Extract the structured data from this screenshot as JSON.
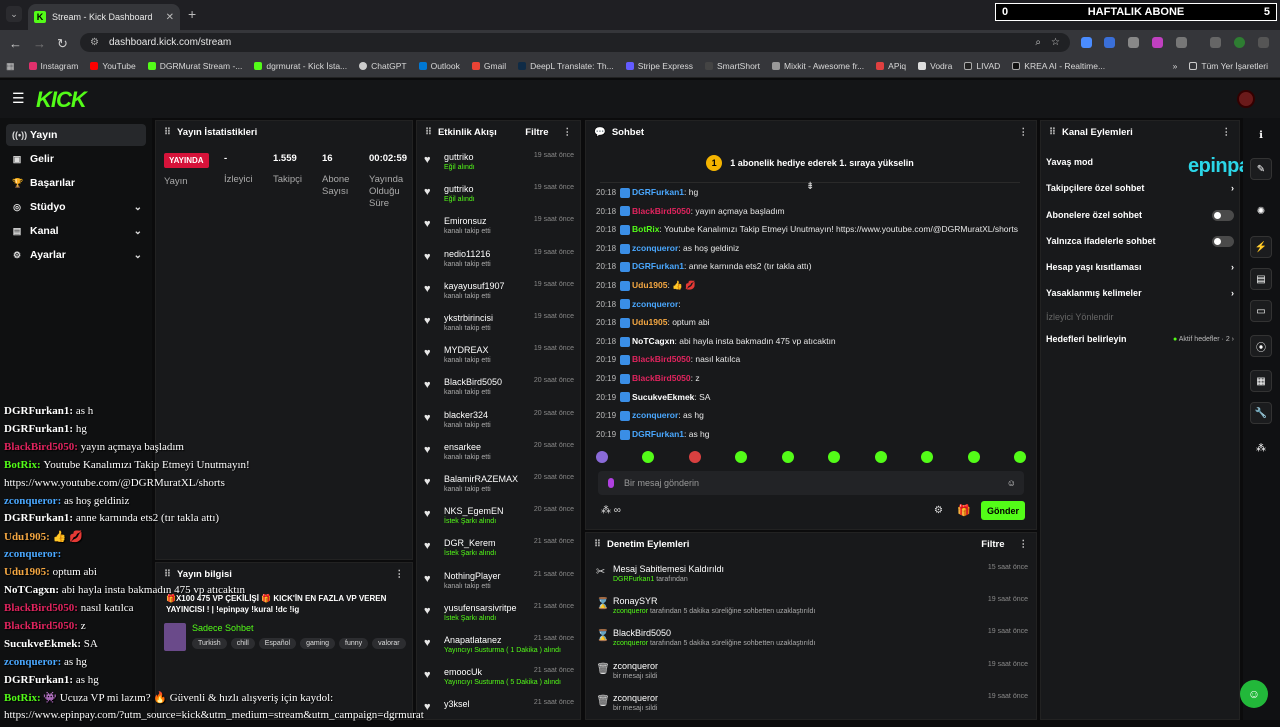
{
  "browser": {
    "tab_title": "Stream - Kick Dashboard",
    "url": "dashboard.kick.com/stream",
    "overlay_left": "0",
    "overlay_title": "HAFTALIK ABONE",
    "overlay_right": "5",
    "bookmarks": [
      "Instagram",
      "YouTube",
      "DGRMurat Stream -...",
      "dgrmurat - Kick İsta...",
      "ChatGPT",
      "Outlook",
      "Gmail",
      "DeepL Translate: Th...",
      "Stripe Express",
      "SmartShort",
      "Mixkit - Awesome fr...",
      "APiq",
      "Vodra",
      "LIVAD",
      "KREA AI - Realtime..."
    ],
    "all_bookmarks": "Tüm Yer İşaretleri"
  },
  "brand": {
    "logo": "KICK",
    "accent": "#53fc18"
  },
  "sidebar": {
    "items": [
      {
        "label": "Yayın",
        "icon": "broadcast-icon"
      },
      {
        "label": "Gelir",
        "icon": "wallet-icon"
      },
      {
        "label": "Başarılar",
        "icon": "trophy-icon"
      },
      {
        "label": "Stüdyo",
        "icon": "studio-icon"
      },
      {
        "label": "Kanal",
        "icon": "channel-icon"
      },
      {
        "label": "Ayarlar",
        "icon": "gear-icon"
      }
    ]
  },
  "stats": {
    "title": "Yayın İstatistikleri",
    "live_badge": "YAYINDA",
    "live_label": "Yayın",
    "items": [
      {
        "value": "-",
        "label": "İzleyici"
      },
      {
        "value": "1.559",
        "label": "Takipçi"
      },
      {
        "value": "16",
        "label": "Abone Sayısı"
      },
      {
        "value": "00:02:59",
        "label": "Yayında Olduğu Süre"
      }
    ]
  },
  "stream_info": {
    "title": "Yayın bilgisi",
    "stream_title": "🎁X100 475 VP ÇEKİLİŞİ 🎁 KICK'İN EN FAZLA VP VEREN YAYINCISI ! | !epinpay !kural !dc !ig",
    "category": "Sadece Sohbet",
    "tags": [
      "Turkish",
      "chill",
      "Español",
      "gaming",
      "funny",
      "valorar"
    ]
  },
  "activity": {
    "title": "Etkinlik Akışı",
    "filter": "Filtre",
    "items": [
      {
        "name": "guttriko",
        "sub": "Eğil alındı",
        "time": "19 saat önce",
        "green": true
      },
      {
        "name": "guttriko",
        "sub": "Eğil alındı",
        "time": "19 saat önce",
        "green": true
      },
      {
        "name": "Emironsuz",
        "sub": "kanalı takip etti",
        "time": "19 saat önce"
      },
      {
        "name": "nedio11216",
        "sub": "kanalı takip etti",
        "time": "19 saat önce"
      },
      {
        "name": "kayayusuf1907",
        "sub": "kanalı takip etti",
        "time": "19 saat önce"
      },
      {
        "name": "ykstrbirincisi",
        "sub": "kanalı takip etti",
        "time": "19 saat önce"
      },
      {
        "name": "MYDREAX",
        "sub": "kanalı takip etti",
        "time": "19 saat önce"
      },
      {
        "name": "BlackBird5050",
        "sub": "kanalı takip etti",
        "time": "20 saat önce"
      },
      {
        "name": "blacker324",
        "sub": "kanalı takip etti",
        "time": "20 saat önce"
      },
      {
        "name": "ensarkee",
        "sub": "kanalı takip etti",
        "time": "20 saat önce"
      },
      {
        "name": "BalamirRAZEMAX",
        "sub": "kanalı takip etti",
        "time": "20 saat önce"
      },
      {
        "name": "NKS_EgemEN",
        "sub": "İstek Şarkı alındı",
        "time": "20 saat önce",
        "green": true
      },
      {
        "name": "DGR_Kerem",
        "sub": "İstek Şarkı alındı",
        "time": "21 saat önce",
        "green": true
      },
      {
        "name": "NothingPlayer",
        "sub": "kanalı takip etti",
        "time": "21 saat önce"
      },
      {
        "name": "yusufensarsivritpe",
        "sub": "İstek Şarkı alındı",
        "time": "21 saat önce",
        "green": true
      },
      {
        "name": "Anapatlatanez",
        "sub": "Yayıncıyı Susturma ( 1 Dakika ) alındı",
        "time": "21 saat önce",
        "green": true
      },
      {
        "name": "emoocUk",
        "sub": "Yayıncıyı Susturma ( 5 Dakika ) alındı",
        "time": "21 saat önce",
        "green": true
      },
      {
        "name": "y3ksel",
        "sub": "",
        "time": "21 saat önce"
      }
    ]
  },
  "chat": {
    "title": "Sohbet",
    "pinned": "1 abonelik hediye ederek 1. sıraya yükselin",
    "pinned_coin": "1",
    "messages": [
      {
        "time": "20:18",
        "user": "DGRFurkan1",
        "color": "#4aa8ff",
        "text": "hg"
      },
      {
        "time": "20:18",
        "user": "BlackBird5050",
        "color": "#e0245e",
        "text": "yayın açmaya başladım"
      },
      {
        "time": "20:18",
        "user": "BotRix",
        "color": "#53fc18",
        "text": "Youtube Kanalımızı Takip Etmeyi Unutmayın! https://www.youtube.com/@DGRMuratXL/shorts"
      },
      {
        "time": "20:18",
        "user": "zconqueror",
        "color": "#4aa8ff",
        "text": "as hoş geldiniz"
      },
      {
        "time": "20:18",
        "user": "DGRFurkan1",
        "color": "#4aa8ff",
        "text": "anne karnında ets2 (tır takla attı)"
      },
      {
        "time": "20:18",
        "user": "Udu1905",
        "color": "#f4a742",
        "text": "👍 💋"
      },
      {
        "time": "20:18",
        "user": "zconqueror",
        "color": "#4aa8ff",
        "text": ""
      },
      {
        "time": "20:18",
        "user": "Udu1905",
        "color": "#f4a742",
        "text": "optum abi"
      },
      {
        "time": "20:18",
        "user": "NoTCagxn",
        "color": "#ffffff",
        "text": "abi hayla insta bakmadın 475 vp atıcaktın"
      },
      {
        "time": "20:19",
        "user": "BlackBird5050",
        "color": "#e0245e",
        "text": "nasıl katılca"
      },
      {
        "time": "20:19",
        "user": "BlackBird5050",
        "color": "#e0245e",
        "text": "z"
      },
      {
        "time": "20:19",
        "user": "SucukveEkmek",
        "color": "#ffffff",
        "text": "SA"
      },
      {
        "time": "20:19",
        "user": "zconqueror",
        "color": "#4aa8ff",
        "text": "as hg"
      },
      {
        "time": "20:19",
        "user": "DGRFurkan1",
        "color": "#4aa8ff",
        "text": "as hg"
      }
    ],
    "placeholder": "Bir mesaj gönderin",
    "send": "Gönder"
  },
  "moderation": {
    "title": "Denetim Eylemleri",
    "filter": "Filtre",
    "items": [
      {
        "icon": "unpin-icon",
        "title": "Mesaj Sabitlemesi Kaldırıldı",
        "user": "DGRFurkan1",
        "desc": "tarafından",
        "time": "15 saat önce"
      },
      {
        "icon": "timeout-icon",
        "title": "RonaySYR",
        "user": "zconqueror",
        "desc": "tarafından 5 dakika süreliğine sohbetten uzaklaştırıldı",
        "time": "19 saat önce"
      },
      {
        "icon": "timeout-icon",
        "title": "BlackBird5050",
        "user": "zconqueror",
        "desc": "tarafından 5 dakika süreliğine sohbetten uzaklaştırıldı",
        "time": "19 saat önce"
      },
      {
        "icon": "trash-icon",
        "title": "zconqueror",
        "user": "",
        "desc": "bir mesajı sildi",
        "time": "19 saat önce"
      },
      {
        "icon": "trash-icon",
        "title": "zconqueror",
        "user": "",
        "desc": "bir mesajı sildi",
        "time": "19 saat önce"
      }
    ]
  },
  "channel_actions": {
    "title": "Kanal Eylemleri",
    "items": [
      {
        "label": "Yavaş mod",
        "kind": "none"
      },
      {
        "label": "Takipçilere özel sohbet",
        "kind": "chevron"
      },
      {
        "label": "Abonelere özel sohbet",
        "kind": "toggle"
      },
      {
        "label": "Yalnızca ifadelerle sohbet",
        "kind": "toggle"
      },
      {
        "label": "Hesap yaşı kısıtlaması",
        "kind": "chevron"
      },
      {
        "label": "Yasaklanmış kelimeler",
        "kind": "chevron"
      },
      {
        "label": "İzleyici Yönlendir",
        "kind": "muted"
      },
      {
        "label": "Hedefleri belirleyin",
        "kind": "goal",
        "extra": "Aktif hedefler · 2"
      }
    ],
    "sponsor": "epinpay"
  },
  "overlay_chat": {
    "lines": [
      {
        "user": "DGRFurkan1",
        "color": "#ffffff",
        "text": "as h"
      },
      {
        "user": "DGRFurkan1",
        "color": "#ffffff",
        "text": "hg"
      },
      {
        "user": "BlackBird5050",
        "color": "#e0245e",
        "text": "yayın açmaya başladım"
      },
      {
        "user": "BotRix",
        "color": "#53fc18",
        "text": "Youtube Kanalımızı Takip Etmeyi Unutmayın!"
      },
      {
        "user": "",
        "color": "#ffffff",
        "text": "https://www.youtube.com/@DGRMuratXL/shorts"
      },
      {
        "user": "zconqueror",
        "color": "#4aa8ff",
        "text": "as hoş geldiniz"
      },
      {
        "user": "DGRFurkan1",
        "color": "#ffffff",
        "text": "anne karnında ets2 (tır takla attı)"
      },
      {
        "user": "Udu1905",
        "color": "#f4a742",
        "text": "👍 💋"
      },
      {
        "user": "zconqueror",
        "color": "#4aa8ff",
        "text": ""
      },
      {
        "user": "Udu1905",
        "color": "#f4a742",
        "text": "optum abi"
      },
      {
        "user": "NoTCagxn",
        "color": "#ffffff",
        "text": "abi hayla insta bakmadın 475 vp atıcaktın"
      },
      {
        "user": "BlackBird5050",
        "color": "#e0245e",
        "text": "nasıl katılca"
      },
      {
        "user": "BlackBird5050",
        "color": "#e0245e",
        "text": "z"
      },
      {
        "user": "SucukveEkmek",
        "color": "#ffffff",
        "text": "SA"
      },
      {
        "user": "zconqueror",
        "color": "#4aa8ff",
        "text": "as hg"
      },
      {
        "user": "DGRFurkan1",
        "color": "#ffffff",
        "text": "as hg"
      },
      {
        "user": "BotRix",
        "color": "#53fc18",
        "text": "👾 Ucuza VP mi lazım? 🔥 Güvenli & hızlı alışveriş için kaydol:"
      },
      {
        "user": "",
        "color": "#ffffff",
        "text": "https://www.epinpay.com/?utm_source=kick&utm_medium=stream&utm_campaign=dgrmurat"
      }
    ]
  }
}
